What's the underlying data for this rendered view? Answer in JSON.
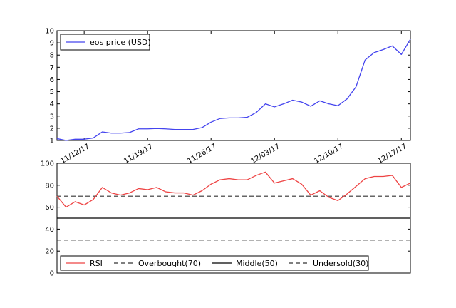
{
  "chart_data": [
    {
      "type": "line",
      "title": "",
      "xlabel": "",
      "ylabel": "",
      "ylim": [
        1,
        10
      ],
      "yticks": [
        "1",
        "2",
        "3",
        "4",
        "5",
        "6",
        "7",
        "8",
        "9",
        "10"
      ],
      "x_tick_labels": [
        "11/12/17",
        "11/19/17",
        "11/26/17",
        "12/03/17",
        "12/10/17",
        "12/17/17"
      ],
      "x_start": "11/09/17",
      "legend": {
        "placement": "top-left"
      },
      "grid": false,
      "series": [
        {
          "name": "eos price (USD)",
          "color": "#4444ee",
          "values": [
            1.15,
            1.0,
            1.1,
            1.1,
            1.2,
            1.7,
            1.6,
            1.6,
            1.65,
            1.95,
            1.95,
            1.98,
            1.95,
            1.9,
            1.9,
            1.9,
            2.05,
            2.5,
            2.8,
            2.85,
            2.85,
            2.9,
            3.3,
            4.0,
            3.75,
            4.0,
            4.3,
            4.15,
            3.8,
            4.25,
            4.0,
            3.85,
            4.4,
            5.4,
            7.6,
            8.2,
            8.45,
            8.75,
            8.05,
            9.3
          ]
        }
      ]
    },
    {
      "type": "line",
      "title": "",
      "xlabel": "",
      "ylabel": "",
      "ylim": [
        0,
        100
      ],
      "yticks": [
        "0",
        "20",
        "40",
        "60",
        "80",
        "100"
      ],
      "legend": {
        "placement": "bottom-left"
      },
      "grid": false,
      "series": [
        {
          "name": "RSI",
          "color": "#ee4444",
          "values": [
            70,
            60,
            65,
            62,
            67,
            78,
            73,
            71,
            73,
            77,
            76,
            78,
            74,
            73,
            73,
            71,
            75,
            81,
            85,
            86,
            85,
            85,
            89,
            92,
            82,
            84,
            86,
            81,
            71,
            75,
            69,
            66,
            72,
            79,
            86,
            88,
            88,
            89,
            78,
            82
          ]
        }
      ],
      "reference_lines": [
        {
          "name": "Overbought(70)",
          "value": 70,
          "style": "dashed",
          "color": "#333333"
        },
        {
          "name": "Middle(50)",
          "value": 50,
          "style": "solid",
          "color": "#000000"
        },
        {
          "name": "Undersold(30)",
          "value": 30,
          "style": "dashed",
          "color": "#333333"
        }
      ]
    }
  ]
}
